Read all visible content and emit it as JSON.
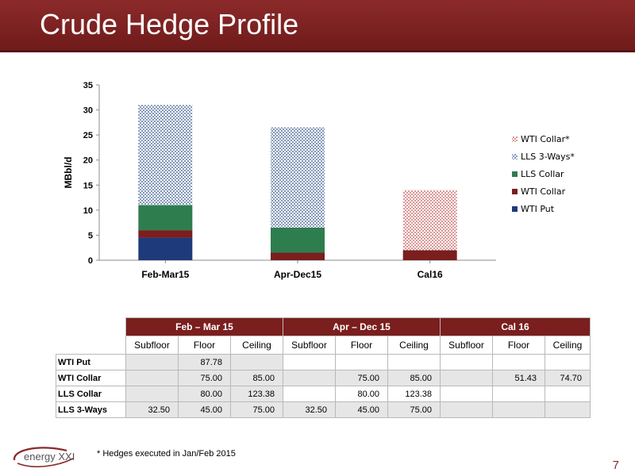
{
  "header": {
    "title": "Crude Hedge Profile"
  },
  "chart_data": {
    "type": "bar",
    "stacked": true,
    "categories": [
      "Feb-Mar15",
      "Apr-Dec15",
      "Cal16"
    ],
    "ylabel": "MBbl/d",
    "ylim": [
      0,
      35
    ],
    "yticks": [
      0,
      5,
      10,
      15,
      20,
      25,
      30,
      35
    ],
    "grid": false,
    "legend_position": "right",
    "series": [
      {
        "name": "WTI Put",
        "values": [
          4.5,
          0,
          0
        ],
        "color": "#1f3a7a",
        "pattern": "solid"
      },
      {
        "name": "WTI Collar",
        "values": [
          1.5,
          1.5,
          2
        ],
        "color": "#7a1e1e",
        "pattern": "solid"
      },
      {
        "name": "LLS Collar",
        "values": [
          5,
          5,
          0
        ],
        "color": "#2e7d4f",
        "pattern": "solid"
      },
      {
        "name": "LLS 3-Ways*",
        "values": [
          20,
          20,
          0
        ],
        "color": "#2d4f8a",
        "pattern": "dots"
      },
      {
        "name": "WTI Collar*",
        "values": [
          0,
          0,
          12
        ],
        "color": "#c0504d",
        "pattern": "dots"
      }
    ]
  },
  "table": {
    "groups": [
      "Feb – Mar 15",
      "Apr – Dec 15",
      "Cal 16"
    ],
    "subheaders": [
      "Subfloor",
      "Floor",
      "Ceiling",
      "Subfloor",
      "Floor",
      "Ceiling",
      "Subfloor",
      "Floor",
      "Ceiling"
    ],
    "rows": [
      {
        "label": "WTI Put",
        "cells": [
          "",
          "87.78",
          "",
          "",
          "",
          "",
          "",
          "",
          ""
        ]
      },
      {
        "label": "WTI Collar",
        "cells": [
          "",
          "75.00",
          "85.00",
          "",
          "75.00",
          "85.00",
          "",
          "51.43",
          "74.70"
        ]
      },
      {
        "label": "LLS Collar",
        "cells": [
          "",
          "80.00",
          "123.38",
          "",
          "80.00",
          "123.38",
          "",
          "",
          ""
        ]
      },
      {
        "label": "LLS 3-Ways",
        "cells": [
          "32.50",
          "45.00",
          "75.00",
          "32.50",
          "45.00",
          "75.00",
          "",
          "",
          ""
        ]
      }
    ]
  },
  "footnote": "* Hedges executed in Jan/Feb 2015",
  "logo_text": "energy XXI",
  "page_number": "7"
}
